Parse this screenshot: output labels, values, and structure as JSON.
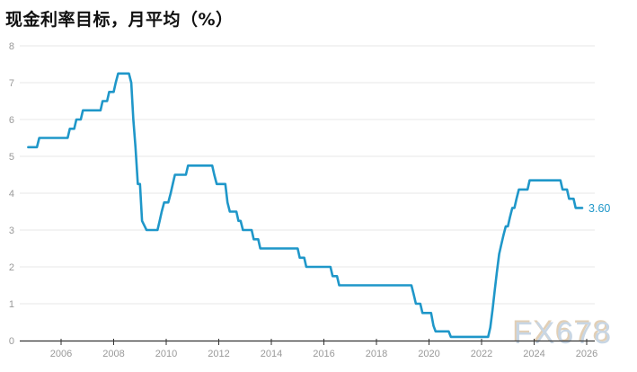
{
  "header": {
    "title": "现金利率目标，月平均（%）"
  },
  "watermark": "FX678",
  "colors": {
    "line": "#1f97c9",
    "grid": "#e7e7e7",
    "axis": "#333333",
    "tick_label": "#999999",
    "title": "#111111",
    "end_label": "#1f97c9",
    "background": "#ffffff",
    "watermark_fill": "#c8d6e4",
    "watermark_shadow": "#d8bf9c"
  },
  "chart_data": {
    "type": "line",
    "title": "现金利率目标，月平均（%）",
    "series_name": "现金利率目标",
    "xlabel": "",
    "ylabel": "",
    "ylim": [
      0,
      8
    ],
    "xlim": [
      2004.4,
      2026.3
    ],
    "grid": true,
    "legend_position": "none",
    "y_ticks": [
      0,
      1,
      2,
      3,
      4,
      5,
      6,
      7,
      8
    ],
    "x_ticks": [
      2006,
      2008,
      2010,
      2012,
      2014,
      2016,
      2018,
      2020,
      2022,
      2024,
      2026
    ],
    "x_tick_labels": [
      "2006",
      "2008",
      "2010",
      "2012",
      "2014",
      "2016",
      "2018",
      "2020",
      "2022",
      "2024",
      "2026"
    ],
    "end_label": "3.60",
    "end_value": 3.6,
    "points": [
      [
        2004.75,
        5.25
      ],
      [
        2005.08,
        5.25
      ],
      [
        2005.17,
        5.5
      ],
      [
        2006.25,
        5.5
      ],
      [
        2006.33,
        5.75
      ],
      [
        2006.5,
        5.75
      ],
      [
        2006.58,
        6.0
      ],
      [
        2006.75,
        6.0
      ],
      [
        2006.83,
        6.25
      ],
      [
        2007.5,
        6.25
      ],
      [
        2007.58,
        6.5
      ],
      [
        2007.75,
        6.5
      ],
      [
        2007.83,
        6.75
      ],
      [
        2008.0,
        6.75
      ],
      [
        2008.08,
        7.0
      ],
      [
        2008.17,
        7.25
      ],
      [
        2008.58,
        7.25
      ],
      [
        2008.67,
        7.0
      ],
      [
        2008.75,
        6.0
      ],
      [
        2008.83,
        5.25
      ],
      [
        2008.92,
        4.25
      ],
      [
        2009.0,
        4.25
      ],
      [
        2009.08,
        3.25
      ],
      [
        2009.25,
        3.0
      ],
      [
        2009.67,
        3.0
      ],
      [
        2009.75,
        3.25
      ],
      [
        2009.83,
        3.5
      ],
      [
        2009.92,
        3.75
      ],
      [
        2010.08,
        3.75
      ],
      [
        2010.17,
        4.0
      ],
      [
        2010.25,
        4.25
      ],
      [
        2010.33,
        4.5
      ],
      [
        2010.75,
        4.5
      ],
      [
        2010.83,
        4.75
      ],
      [
        2011.75,
        4.75
      ],
      [
        2011.83,
        4.5
      ],
      [
        2011.92,
        4.25
      ],
      [
        2012.25,
        4.25
      ],
      [
        2012.33,
        3.75
      ],
      [
        2012.42,
        3.5
      ],
      [
        2012.67,
        3.5
      ],
      [
        2012.75,
        3.25
      ],
      [
        2012.83,
        3.25
      ],
      [
        2012.92,
        3.0
      ],
      [
        2013.25,
        3.0
      ],
      [
        2013.33,
        2.75
      ],
      [
        2013.5,
        2.75
      ],
      [
        2013.58,
        2.5
      ],
      [
        2015.0,
        2.5
      ],
      [
        2015.08,
        2.25
      ],
      [
        2015.25,
        2.25
      ],
      [
        2015.33,
        2.0
      ],
      [
        2016.25,
        2.0
      ],
      [
        2016.33,
        1.75
      ],
      [
        2016.5,
        1.75
      ],
      [
        2016.58,
        1.5
      ],
      [
        2019.33,
        1.5
      ],
      [
        2019.42,
        1.25
      ],
      [
        2019.5,
        1.0
      ],
      [
        2019.67,
        1.0
      ],
      [
        2019.75,
        0.75
      ],
      [
        2020.08,
        0.75
      ],
      [
        2020.17,
        0.4
      ],
      [
        2020.25,
        0.25
      ],
      [
        2020.75,
        0.25
      ],
      [
        2020.83,
        0.1
      ],
      [
        2022.25,
        0.1
      ],
      [
        2022.33,
        0.35
      ],
      [
        2022.42,
        0.85
      ],
      [
        2022.5,
        1.35
      ],
      [
        2022.58,
        1.85
      ],
      [
        2022.67,
        2.35
      ],
      [
        2022.75,
        2.6
      ],
      [
        2022.83,
        2.85
      ],
      [
        2022.92,
        3.1
      ],
      [
        2023.0,
        3.1
      ],
      [
        2023.08,
        3.35
      ],
      [
        2023.17,
        3.6
      ],
      [
        2023.25,
        3.6
      ],
      [
        2023.33,
        3.85
      ],
      [
        2023.42,
        4.1
      ],
      [
        2023.75,
        4.1
      ],
      [
        2023.83,
        4.35
      ],
      [
        2025.0,
        4.35
      ],
      [
        2025.08,
        4.1
      ],
      [
        2025.25,
        4.1
      ],
      [
        2025.33,
        3.85
      ],
      [
        2025.5,
        3.85
      ],
      [
        2025.58,
        3.6
      ],
      [
        2025.83,
        3.6
      ]
    ]
  }
}
